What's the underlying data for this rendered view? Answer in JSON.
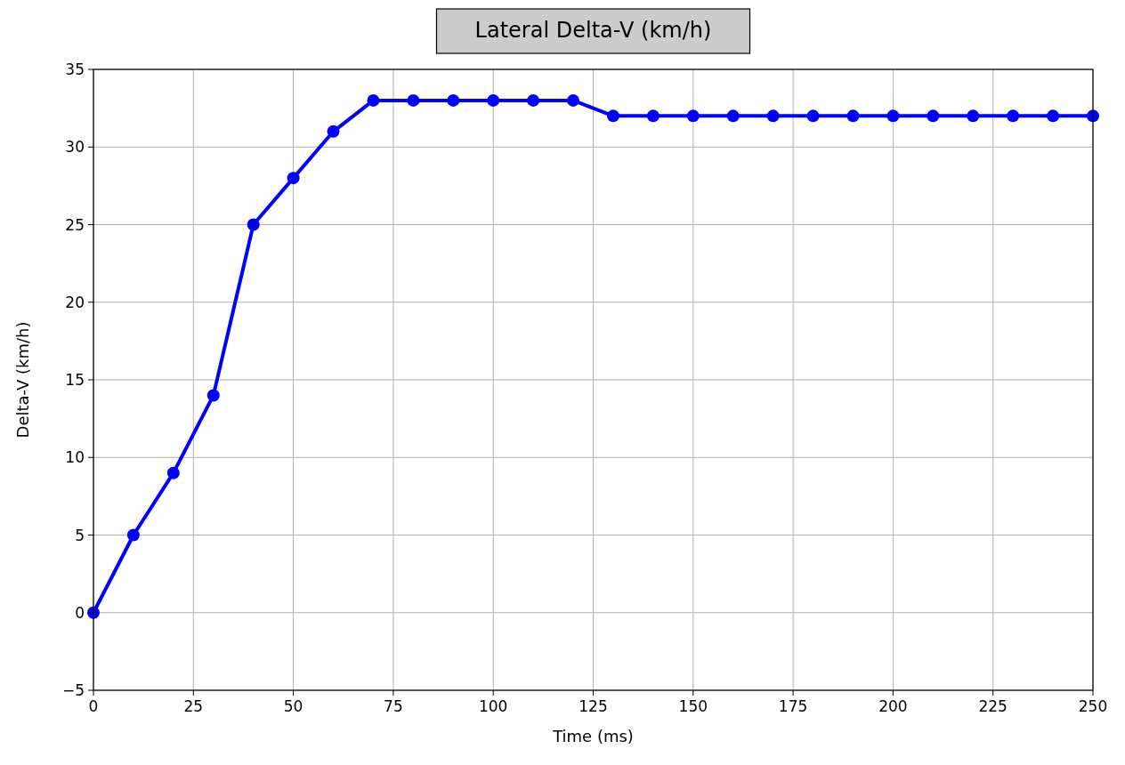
{
  "chart_data": {
    "type": "line",
    "title": "Lateral Delta-V (km/h)",
    "xlabel": "Time (ms)",
    "ylabel": "Delta-V (km/h)",
    "x": [
      0,
      10,
      20,
      30,
      40,
      50,
      60,
      70,
      80,
      90,
      100,
      110,
      120,
      130,
      140,
      150,
      160,
      170,
      180,
      190,
      200,
      210,
      220,
      230,
      240,
      250
    ],
    "series": [
      {
        "color": "#0000ff",
        "values": [
          0,
          5,
          9,
          14,
          25,
          28,
          31,
          33,
          33,
          33,
          33,
          33,
          33,
          32,
          32,
          32,
          32,
          32,
          32,
          32,
          32,
          32,
          32,
          32,
          32,
          32
        ]
      }
    ],
    "xlim": [
      0,
      250
    ],
    "xticks": [
      0,
      25,
      50,
      75,
      100,
      125,
      150,
      175,
      200,
      225,
      250
    ],
    "ylim": [
      -5,
      35
    ],
    "yticks": [
      -5,
      0,
      5,
      10,
      15,
      20,
      25,
      30,
      35
    ],
    "grid": true,
    "marker": "circle",
    "line_style": "solid"
  }
}
